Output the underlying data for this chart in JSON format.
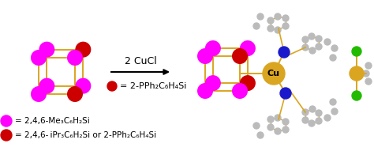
{
  "bg_color": "#ffffff",
  "arrow_label": "2 CuCl",
  "legend_label_magenta": "= 2,4,6-Me₃C₆H₂Si",
  "legend_label_red": "= 2,4,6- iPr₃C₆H₂Si or 2-PPh₂C₆H₄Si",
  "dot_legend_red_label": "= 2-PPh₂C₆H₄Si",
  "cubane_magenta": "#FF00FF",
  "cubane_red": "#CC0000",
  "bond_color": "#DAA520",
  "cu_color": "#DAA520",
  "blue_color": "#1a1aCC",
  "green_color": "#22BB00",
  "gray_color": "#BBBBBB",
  "dark_gray": "#888888",
  "text_color": "#000000",
  "fontsize_arrow": 9,
  "fontsize_legend": 7.5,
  "fontsize_dot_label": 8
}
